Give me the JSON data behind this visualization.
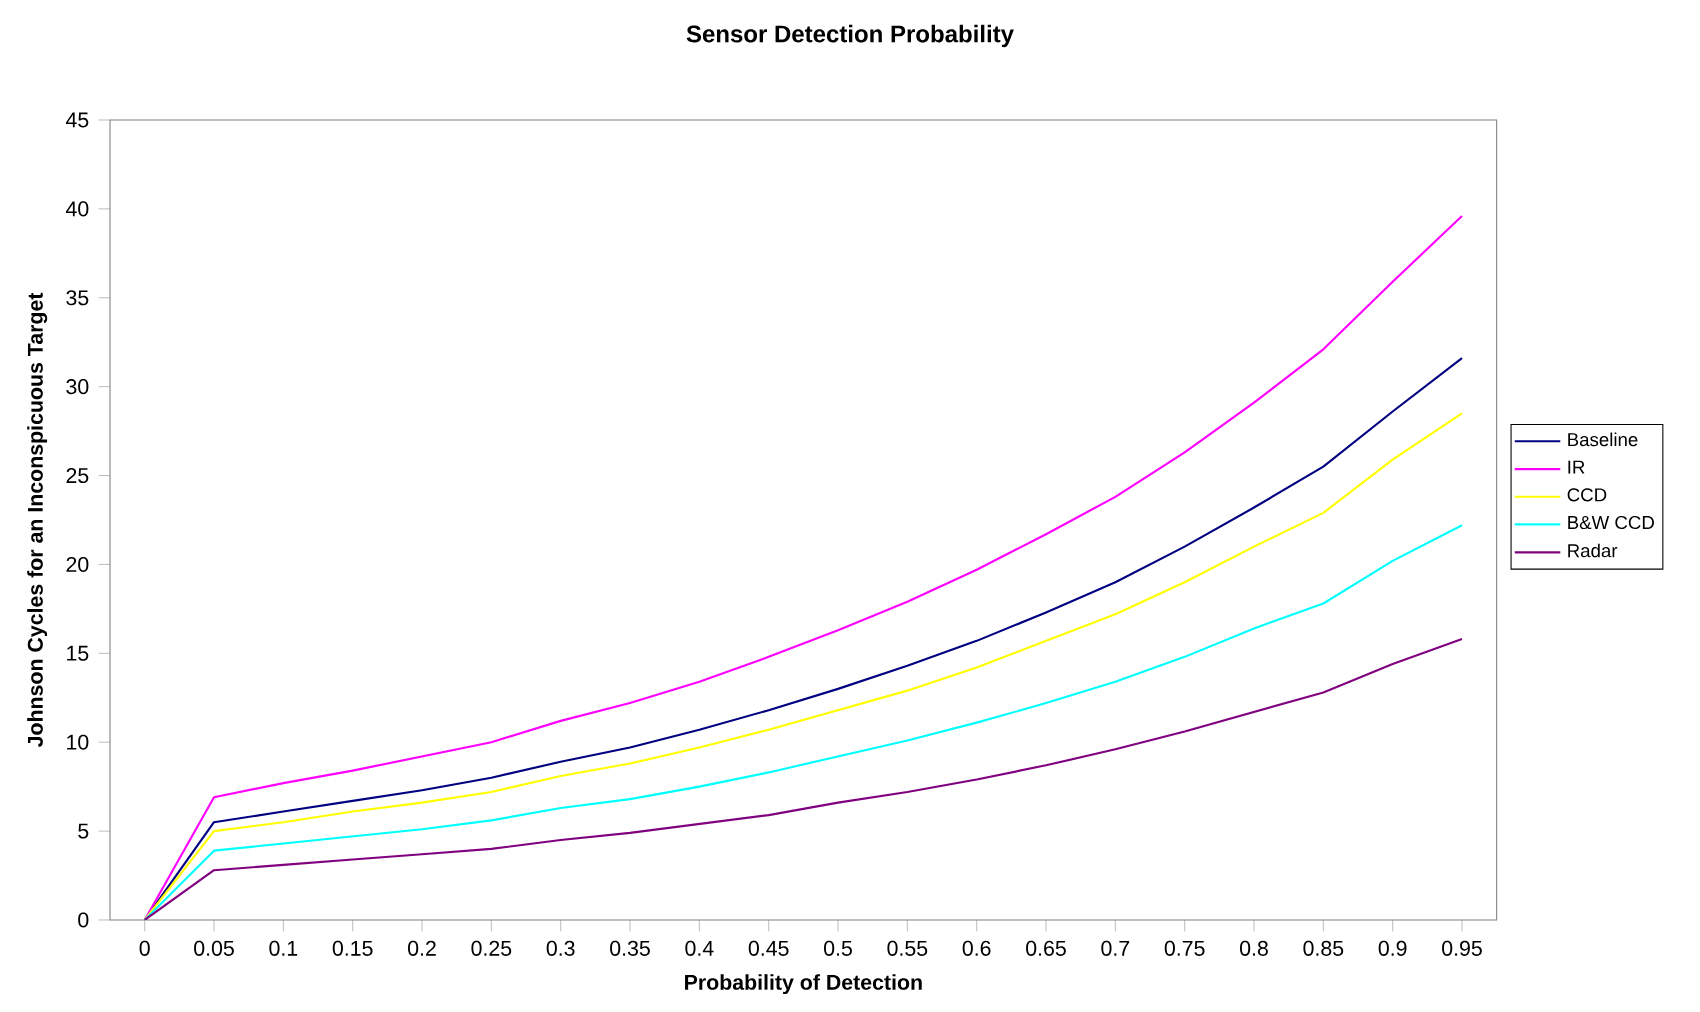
{
  "chart_data": {
    "type": "line",
    "title": "Sensor Detection Probability",
    "xlabel": "Probability of Detection",
    "ylabel": "Johnson Cycles for an Inconspicuous Target",
    "categories": [
      "0",
      "0.05",
      "0.1",
      "0.15",
      "0.2",
      "0.25",
      "0.3",
      "0.35",
      "0.4",
      "0.45",
      "0.5",
      "0.55",
      "0.6",
      "0.65",
      "0.7",
      "0.75",
      "0.8",
      "0.85",
      "0.9",
      "0.95"
    ],
    "ylim": [
      0,
      45
    ],
    "yticks": [
      0,
      5,
      10,
      15,
      20,
      25,
      30,
      35,
      40,
      45
    ],
    "grid": false,
    "legend": "right",
    "marker": "none",
    "line_style": "solid",
    "series": [
      {
        "name": "Baseline",
        "color": "#000080",
        "values": [
          0,
          5.5,
          6.1,
          6.7,
          7.3,
          8.0,
          8.9,
          9.7,
          10.7,
          11.8,
          13.0,
          14.3,
          15.7,
          17.3,
          19.0,
          21.0,
          23.2,
          25.5,
          28.6,
          31.6
        ]
      },
      {
        "name": "IR",
        "color": "#ff00ff",
        "values": [
          0,
          6.9,
          7.7,
          8.4,
          9.2,
          10.0,
          11.2,
          12.2,
          13.4,
          14.8,
          16.3,
          17.9,
          19.7,
          21.7,
          23.8,
          26.3,
          29.1,
          32.1,
          35.9,
          39.6
        ]
      },
      {
        "name": "CCD",
        "color": "#ffff00",
        "values": [
          0,
          5.0,
          5.5,
          6.1,
          6.6,
          7.2,
          8.1,
          8.8,
          9.7,
          10.7,
          11.8,
          12.9,
          14.2,
          15.7,
          17.2,
          19.0,
          21.0,
          22.9,
          25.9,
          28.5
        ]
      },
      {
        "name": "B&W CCD",
        "color": "#00ffff",
        "values": [
          0,
          3.9,
          4.3,
          4.7,
          5.1,
          5.6,
          6.3,
          6.8,
          7.5,
          8.3,
          9.2,
          10.1,
          11.1,
          12.2,
          13.4,
          14.8,
          16.4,
          17.8,
          20.2,
          22.2
        ]
      },
      {
        "name": "Radar",
        "color": "#800080",
        "values": [
          0,
          2.8,
          3.1,
          3.4,
          3.7,
          4.0,
          4.5,
          4.9,
          5.4,
          5.9,
          6.6,
          7.2,
          7.9,
          8.7,
          9.6,
          10.6,
          11.7,
          12.8,
          14.4,
          15.8
        ]
      }
    ]
  }
}
